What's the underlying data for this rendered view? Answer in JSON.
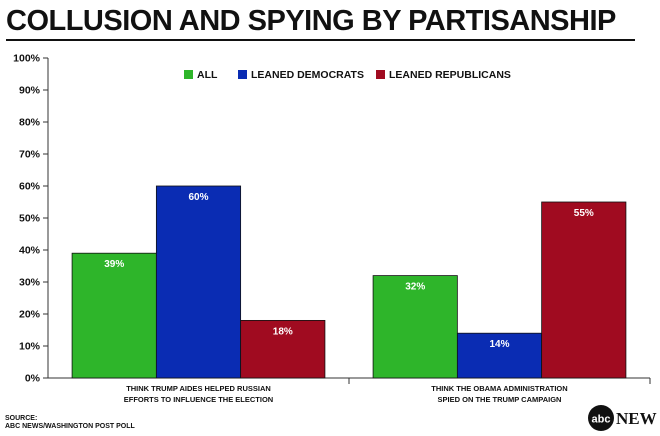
{
  "header": {
    "title": "COLLUSION AND SPYING BY PARTISANSHIP"
  },
  "chart_data": {
    "type": "bar",
    "title": "COLLUSION AND SPYING BY PARTISANSHIP",
    "xlabel": "",
    "ylabel": "",
    "ylim": [
      0,
      100
    ],
    "yticks": [
      "0%",
      "10%",
      "20%",
      "30%",
      "40%",
      "50%",
      "60%",
      "70%",
      "80%",
      "90%",
      "100%"
    ],
    "categories": [
      [
        "THINK TRUMP AIDES HELPED RUSSIAN",
        "EFFORTS TO INFLUENCE THE ELECTION"
      ],
      [
        "THINK THE OBAMA ADMINISTRATION",
        "SPIED ON THE TRUMP CAMPAIGN"
      ]
    ],
    "series": [
      {
        "name": "ALL",
        "color": "#2eb52a",
        "values": [
          39,
          32
        ],
        "labels": [
          "39%",
          "32%"
        ]
      },
      {
        "name": "LEANED DEMOCRATS",
        "color": "#0a2cb3",
        "values": [
          60,
          14
        ],
        "labels": [
          "60%",
          "14%"
        ]
      },
      {
        "name": "LEANED REPUBLICANS",
        "color": "#a00b20",
        "values": [
          18,
          55
        ],
        "labels": [
          "18%",
          "55%"
        ]
      }
    ],
    "legend_position": "top-center",
    "grid": false
  },
  "source": {
    "label": "SOURCE:",
    "text": "ABC NEWS/WASHINGTON POST POLL"
  },
  "logo": {
    "mark": "abc",
    "word": "NEWS"
  }
}
